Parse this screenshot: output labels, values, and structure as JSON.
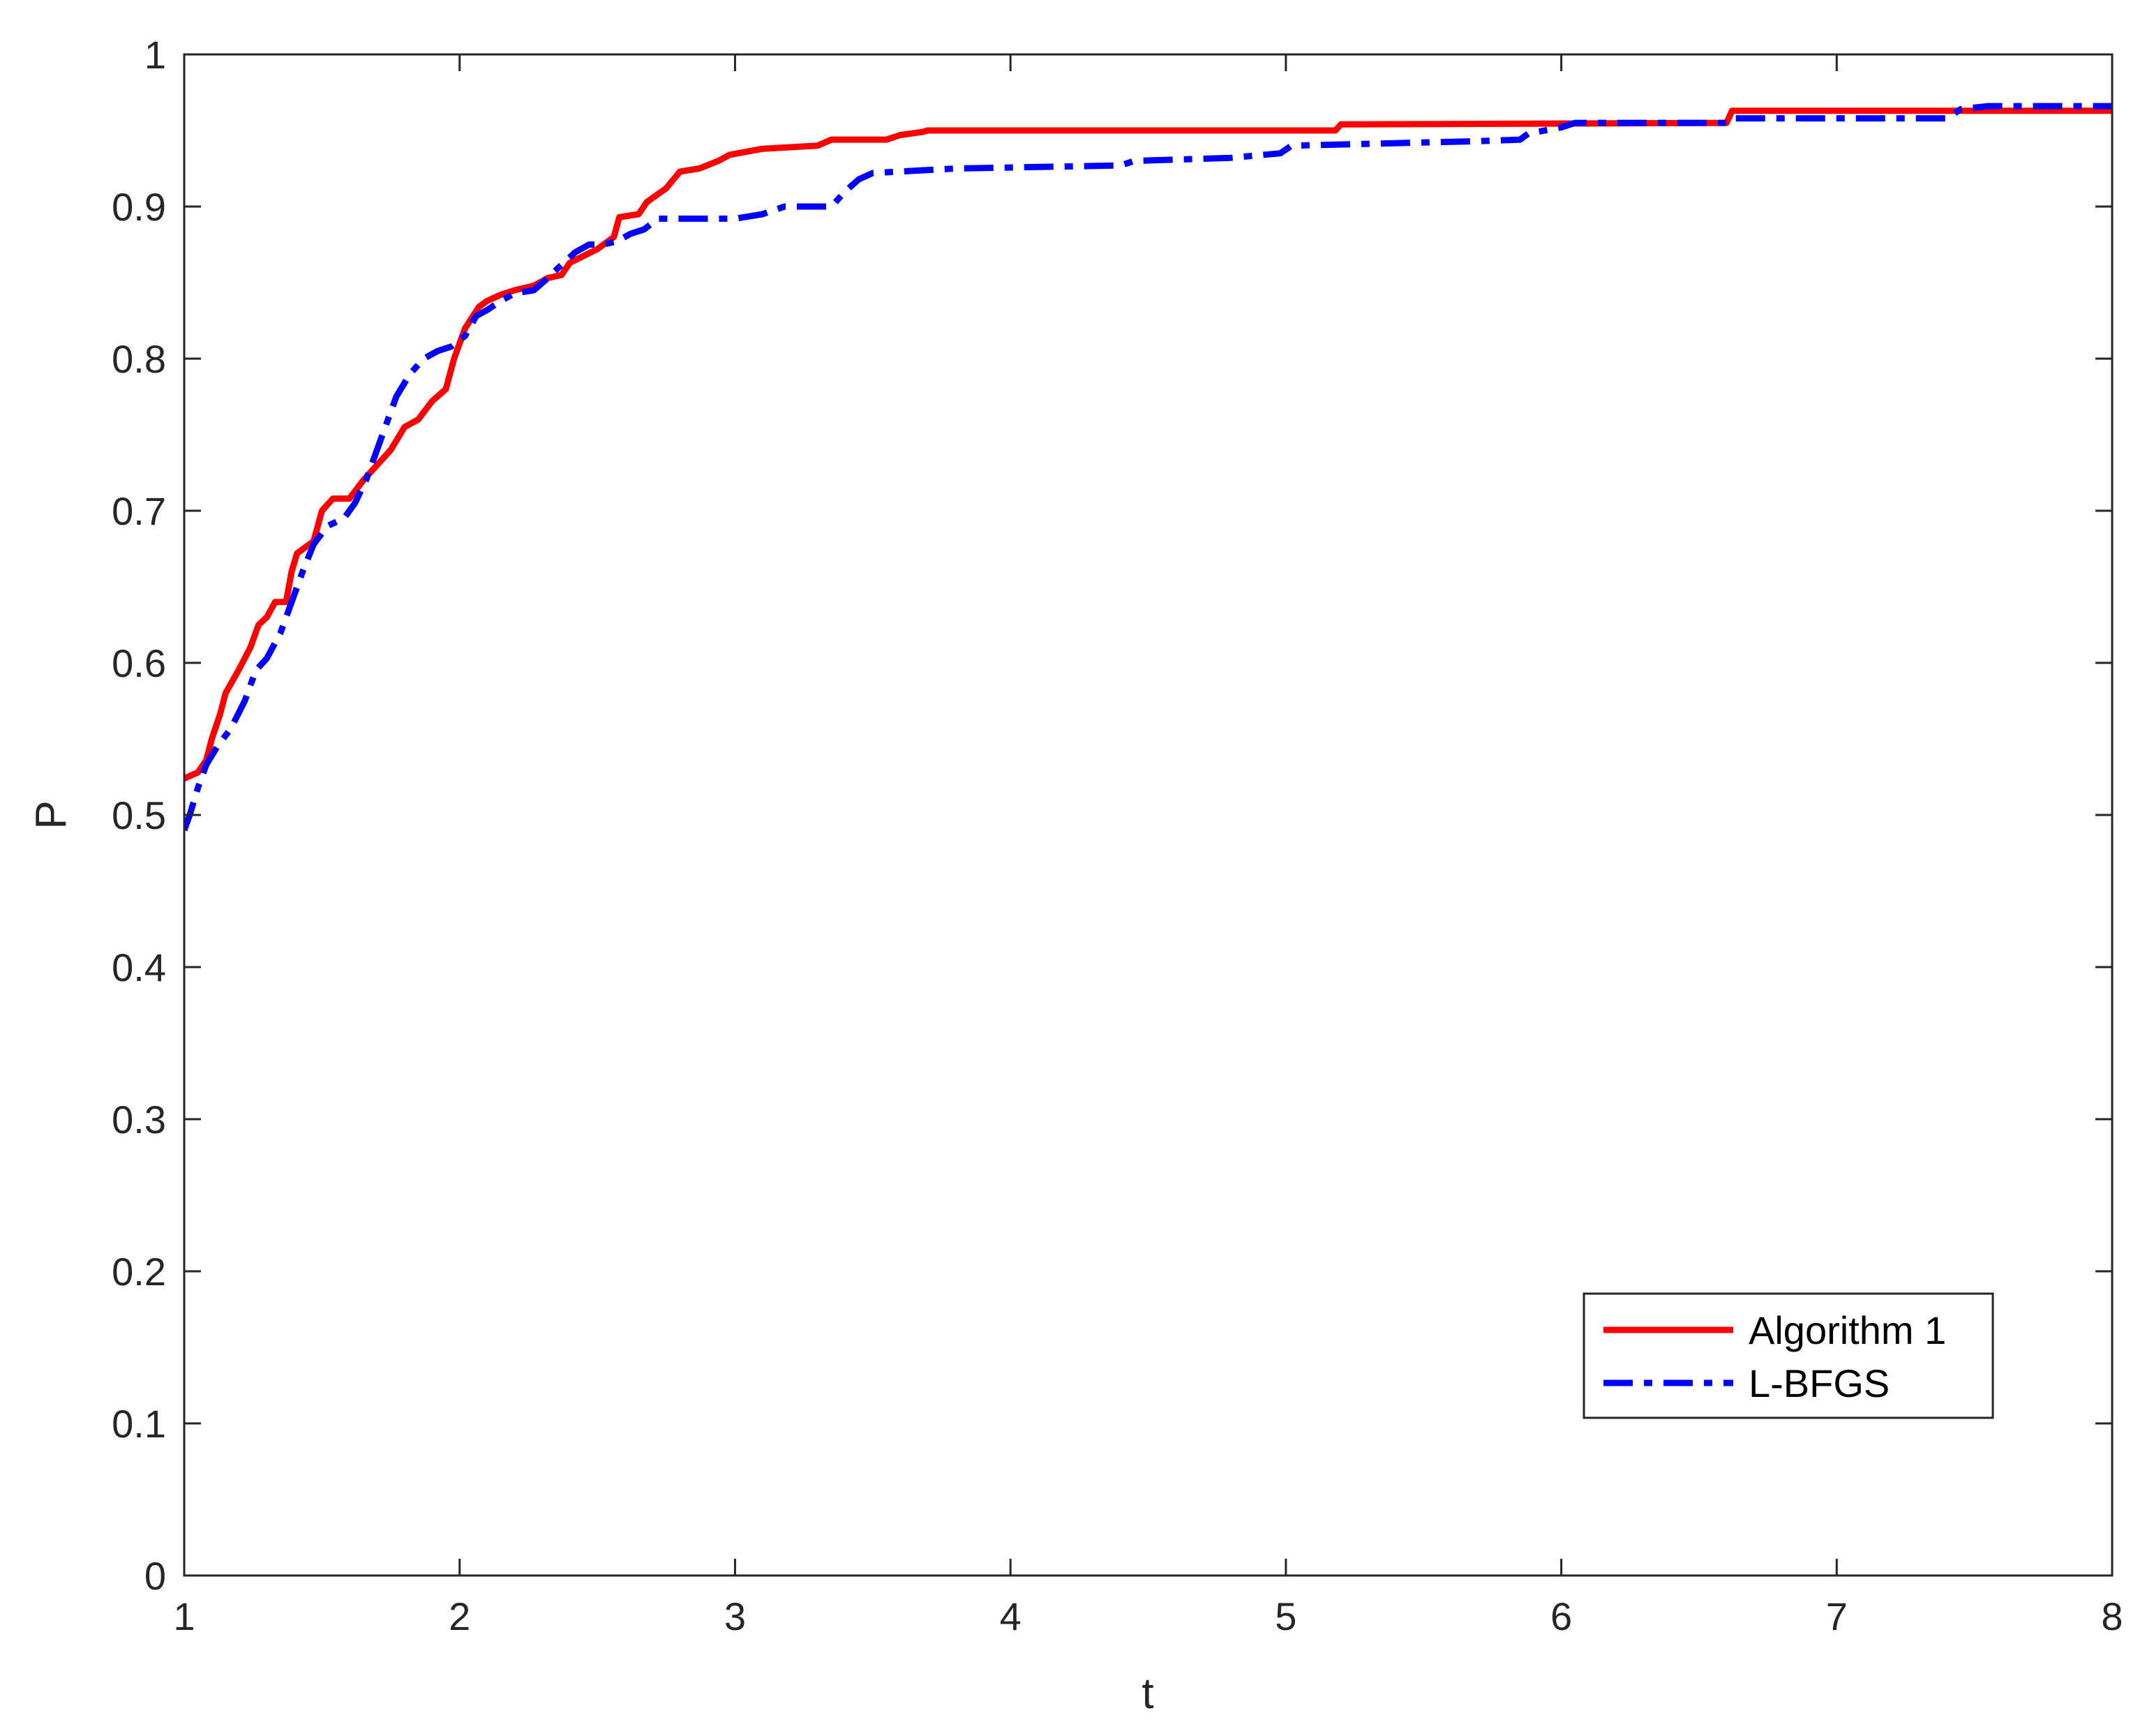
{
  "chart_data": {
    "type": "line",
    "xlabel": "t",
    "ylabel": "P",
    "xlim": [
      1,
      8
    ],
    "ylim": [
      0,
      1
    ],
    "xticks": [
      1,
      2,
      3,
      4,
      5,
      6,
      7,
      8
    ],
    "yticks": [
      0,
      0.1,
      0.2,
      0.3,
      0.4,
      0.5,
      0.6,
      0.7,
      0.8,
      0.9,
      1
    ],
    "xtick_labels": [
      "1",
      "2",
      "3",
      "4",
      "5",
      "6",
      "7",
      "8"
    ],
    "ytick_labels": [
      "0",
      "0.1",
      "0.2",
      "0.3",
      "0.4",
      "0.5",
      "0.6",
      "0.7",
      "0.8",
      "0.9",
      "1"
    ],
    "grid": false,
    "legend_position": "bottom-right",
    "series": [
      {
        "name": "Algorithm 1",
        "color": "#ff0000",
        "line_style": "solid",
        "points": [
          [
            1.0,
            0.524
          ],
          [
            1.05,
            0.528
          ],
          [
            1.08,
            0.536
          ],
          [
            1.1,
            0.55
          ],
          [
            1.13,
            0.566
          ],
          [
            1.15,
            0.58
          ],
          [
            1.2,
            0.596
          ],
          [
            1.24,
            0.61
          ],
          [
            1.27,
            0.625
          ],
          [
            1.3,
            0.63
          ],
          [
            1.33,
            0.64
          ],
          [
            1.37,
            0.64
          ],
          [
            1.39,
            0.66
          ],
          [
            1.41,
            0.672
          ],
          [
            1.47,
            0.68
          ],
          [
            1.5,
            0.7
          ],
          [
            1.54,
            0.708
          ],
          [
            1.6,
            0.708
          ],
          [
            1.65,
            0.72
          ],
          [
            1.7,
            0.73
          ],
          [
            1.75,
            0.74
          ],
          [
            1.8,
            0.755
          ],
          [
            1.85,
            0.76
          ],
          [
            1.9,
            0.772
          ],
          [
            1.95,
            0.78
          ],
          [
            1.98,
            0.8
          ],
          [
            2.02,
            0.82
          ],
          [
            2.07,
            0.834
          ],
          [
            2.1,
            0.838
          ],
          [
            2.15,
            0.842
          ],
          [
            2.2,
            0.845
          ],
          [
            2.27,
            0.848
          ],
          [
            2.32,
            0.853
          ],
          [
            2.37,
            0.855
          ],
          [
            2.4,
            0.863
          ],
          [
            2.5,
            0.872
          ],
          [
            2.56,
            0.88
          ],
          [
            2.58,
            0.893
          ],
          [
            2.65,
            0.895
          ],
          [
            2.68,
            0.903
          ],
          [
            2.75,
            0.912
          ],
          [
            2.8,
            0.923
          ],
          [
            2.87,
            0.925
          ],
          [
            2.94,
            0.93
          ],
          [
            2.98,
            0.934
          ],
          [
            3.1,
            0.938
          ],
          [
            3.3,
            0.94
          ],
          [
            3.35,
            0.944
          ],
          [
            3.55,
            0.944
          ],
          [
            3.6,
            0.947
          ],
          [
            3.68,
            0.949
          ],
          [
            3.7,
            0.95
          ],
          [
            5.18,
            0.95
          ],
          [
            5.2,
            0.954
          ],
          [
            6.6,
            0.955
          ],
          [
            6.62,
            0.963
          ],
          [
            8.0,
            0.963
          ]
        ]
      },
      {
        "name": "L-BFGS",
        "color": "#0000ff",
        "line_style": "dashdot",
        "points": [
          [
            1.0,
            0.49
          ],
          [
            1.02,
            0.5
          ],
          [
            1.05,
            0.518
          ],
          [
            1.08,
            0.533
          ],
          [
            1.12,
            0.545
          ],
          [
            1.17,
            0.557
          ],
          [
            1.22,
            0.575
          ],
          [
            1.26,
            0.595
          ],
          [
            1.3,
            0.603
          ],
          [
            1.35,
            0.62
          ],
          [
            1.38,
            0.635
          ],
          [
            1.43,
            0.66
          ],
          [
            1.47,
            0.678
          ],
          [
            1.52,
            0.69
          ],
          [
            1.58,
            0.695
          ],
          [
            1.62,
            0.705
          ],
          [
            1.66,
            0.72
          ],
          [
            1.7,
            0.74
          ],
          [
            1.73,
            0.755
          ],
          [
            1.77,
            0.775
          ],
          [
            1.82,
            0.79
          ],
          [
            1.87,
            0.8
          ],
          [
            1.92,
            0.805
          ],
          [
            1.97,
            0.808
          ],
          [
            2.02,
            0.815
          ],
          [
            2.06,
            0.828
          ],
          [
            2.1,
            0.832
          ],
          [
            2.15,
            0.838
          ],
          [
            2.2,
            0.843
          ],
          [
            2.27,
            0.845
          ],
          [
            2.32,
            0.853
          ],
          [
            2.36,
            0.86
          ],
          [
            2.42,
            0.87
          ],
          [
            2.47,
            0.875
          ],
          [
            2.52,
            0.875
          ],
          [
            2.57,
            0.877
          ],
          [
            2.62,
            0.882
          ],
          [
            2.67,
            0.885
          ],
          [
            2.72,
            0.892
          ],
          [
            3.0,
            0.892
          ],
          [
            3.1,
            0.895
          ],
          [
            3.18,
            0.9
          ],
          [
            3.35,
            0.9
          ],
          [
            3.4,
            0.91
          ],
          [
            3.45,
            0.918
          ],
          [
            3.5,
            0.922
          ],
          [
            3.8,
            0.925
          ],
          [
            4.4,
            0.927
          ],
          [
            4.45,
            0.93
          ],
          [
            4.8,
            0.932
          ],
          [
            4.98,
            0.935
          ],
          [
            5.02,
            0.94
          ],
          [
            5.7,
            0.943
          ],
          [
            5.85,
            0.944
          ],
          [
            5.88,
            0.948
          ],
          [
            6.0,
            0.952
          ],
          [
            6.05,
            0.955
          ],
          [
            6.6,
            0.955
          ],
          [
            6.62,
            0.958
          ],
          [
            7.4,
            0.958
          ],
          [
            7.45,
            0.964
          ],
          [
            7.55,
            0.966
          ],
          [
            8.0,
            0.966
          ]
        ]
      }
    ]
  },
  "style": {
    "axis_color": "#262626",
    "background": "#ffffff",
    "legend_border": "#262626"
  }
}
